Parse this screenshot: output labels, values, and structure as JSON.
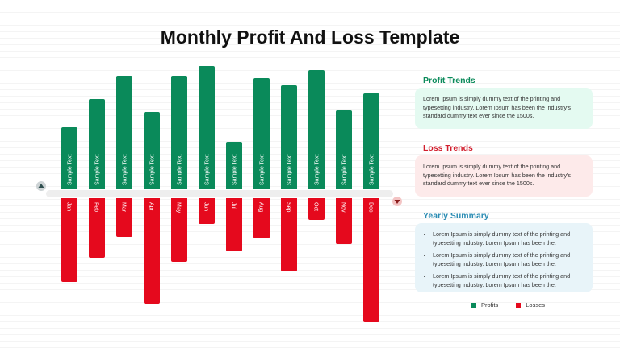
{
  "title": "Monthly Profit And Loss Template",
  "colors": {
    "profit": "#0a8a5a",
    "loss": "#e5091d",
    "track": "#eeeeee"
  },
  "chart_data": {
    "type": "bar",
    "categories": [
      "Jan",
      "Feb",
      "Mar",
      "Apr",
      "May",
      "Jun",
      "Jul",
      "Aug",
      "Sep",
      "Oct",
      "Nov",
      "Dec"
    ],
    "series": [
      {
        "name": "Profits",
        "values": [
          77,
          112,
          141,
          96,
          141,
          153,
          59,
          138,
          129,
          148,
          98,
          119
        ]
      },
      {
        "name": "Losses",
        "values": [
          -104,
          -74,
          -48,
          -131,
          -79,
          -32,
          -66,
          -50,
          -91,
          -27,
          -57,
          -154
        ]
      }
    ],
    "bar_label": "Sample Text",
    "ylim": [
      -160,
      160
    ]
  },
  "panels": {
    "profit": {
      "heading": "Profit Trends",
      "text": "Lorem Ipsum is simply dummy text of the printing and typesetting industry. Lorem Ipsum has been the industry's standard dummy text ever since the 1500s."
    },
    "loss": {
      "heading": "Loss Trends",
      "text": "Lorem Ipsum is simply dummy text of the printing and typesetting industry. Lorem Ipsum has been the industry's standard dummy text ever since the 1500s."
    },
    "summary": {
      "heading": "Yearly Summary",
      "bullets": [
        "Lorem Ipsum is simply dummy text of the printing and typesetting industry. Lorem Ipsum has been the.",
        "Lorem Ipsum is simply dummy text of the printing and typesetting industry. Lorem Ipsum has been the.",
        "Lorem Ipsum is simply dummy text of the printing and typesetting industry. Lorem Ipsum has been the."
      ]
    }
  },
  "legend": {
    "profits": "Profits",
    "losses": "Losses"
  }
}
